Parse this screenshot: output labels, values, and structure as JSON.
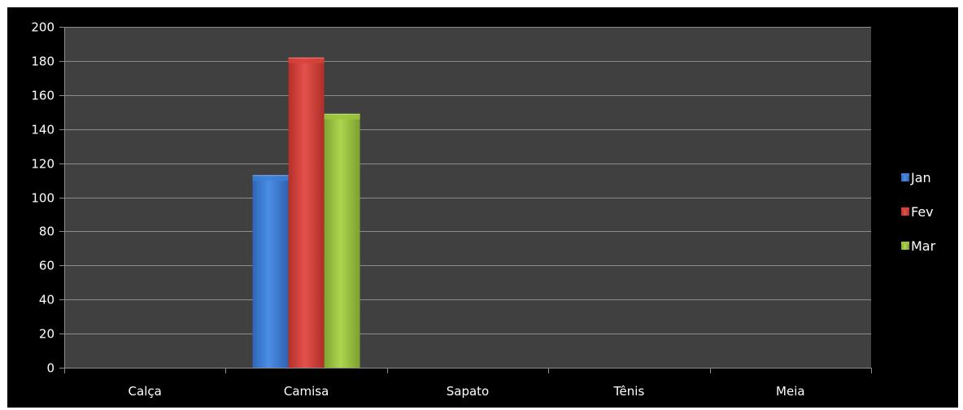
{
  "chart_data": {
    "type": "bar",
    "categories": [
      "Calça",
      "Camisa",
      "Sapato",
      "Tênis",
      "Meia"
    ],
    "series": [
      {
        "name": "Jan",
        "values": [
          0,
          113,
          0,
          0,
          0
        ],
        "color": "#3f7fd6"
      },
      {
        "name": "Fev",
        "values": [
          0,
          182,
          0,
          0,
          0
        ],
        "color": "#d9423b"
      },
      {
        "name": "Mar",
        "values": [
          0,
          149,
          0,
          0,
          0
        ],
        "color": "#9cc53e"
      }
    ],
    "ylim": [
      0,
      200
    ],
    "yticks": [
      0,
      20,
      40,
      60,
      80,
      100,
      120,
      140,
      160,
      180,
      200
    ],
    "grid": true,
    "legend_position": "right",
    "plot_background": "#404040",
    "chart_background": "#000000"
  }
}
